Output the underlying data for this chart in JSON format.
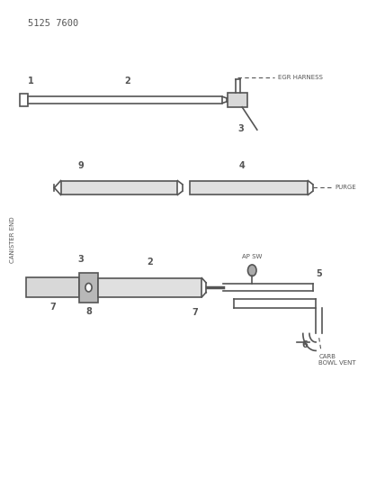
{
  "title_code": "5125 7600",
  "bg_color": "#ffffff",
  "line_color": "#555555",
  "text_color": "#555555",
  "egr_label": "EGR HARNESS",
  "purge_label": "PURGE",
  "apSW_label": "AP SW",
  "carb_label": "CARB\nBOWL VENT",
  "canister_label": "CANISTER END",
  "label1": "1",
  "label2": "2",
  "label3": "3",
  "label4": "4",
  "label5": "5",
  "label6": "6",
  "label7": "7",
  "label8": "8",
  "label9": "9"
}
